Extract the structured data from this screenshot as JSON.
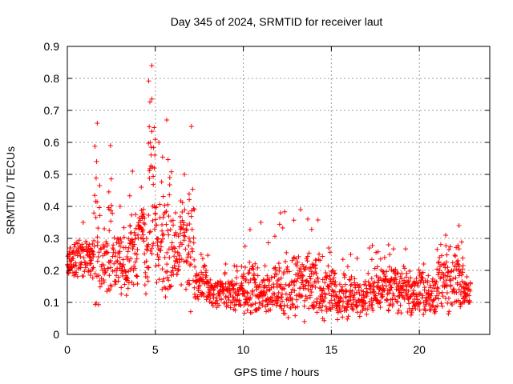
{
  "chart_data": {
    "type": "scatter",
    "title": "Day 345 of 2024, SRMTID for receiver laut",
    "xlabel": "GPS time / hours",
    "ylabel": "SRMTID / TECUs",
    "xlim": [
      0,
      24
    ],
    "ylim": [
      0,
      0.9
    ],
    "xticks": [
      0,
      5,
      10,
      15,
      20
    ],
    "yticks": [
      0,
      0.1,
      0.2,
      0.3,
      0.4,
      0.5,
      0.6,
      0.7,
      0.8,
      0.9
    ],
    "grid": true,
    "marker": "+",
    "color": "#ff0000",
    "segments": [
      {
        "t0": 0.0,
        "t1": 0.3,
        "base": 0.23,
        "amp": 0.05,
        "peak": 0.27
      },
      {
        "t0": 0.3,
        "t1": 1.5,
        "base": 0.24,
        "amp": 0.08,
        "peak": 0.35
      },
      {
        "t0": 1.5,
        "t1": 1.9,
        "base": 0.3,
        "amp": 0.25,
        "peak": 0.66
      },
      {
        "t0": 1.9,
        "t1": 2.3,
        "base": 0.22,
        "amp": 0.1,
        "peak": 0.33
      },
      {
        "t0": 2.3,
        "t1": 2.6,
        "base": 0.3,
        "amp": 0.2,
        "peak": 0.59
      },
      {
        "t0": 2.6,
        "t1": 3.4,
        "base": 0.22,
        "amp": 0.12,
        "peak": 0.4
      },
      {
        "t0": 3.4,
        "t1": 4.0,
        "base": 0.25,
        "amp": 0.15,
        "peak": 0.51
      },
      {
        "t0": 4.0,
        "t1": 4.4,
        "base": 0.33,
        "amp": 0.1,
        "peak": 0.46
      },
      {
        "t0": 4.4,
        "t1": 4.6,
        "base": 0.22,
        "amp": 0.1,
        "peak": 0.3
      },
      {
        "t0": 4.6,
        "t1": 5.0,
        "base": 0.45,
        "amp": 0.35,
        "peak": 0.84
      },
      {
        "t0": 5.0,
        "t1": 5.4,
        "base": 0.3,
        "amp": 0.2,
        "peak": 0.6
      },
      {
        "t0": 5.4,
        "t1": 5.9,
        "base": 0.3,
        "amp": 0.25,
        "peak": 0.67
      },
      {
        "t0": 5.9,
        "t1": 6.4,
        "base": 0.25,
        "amp": 0.12,
        "peak": 0.38
      },
      {
        "t0": 6.4,
        "t1": 6.9,
        "base": 0.28,
        "amp": 0.18,
        "peak": 0.5
      },
      {
        "t0": 6.9,
        "t1": 7.2,
        "base": 0.3,
        "amp": 0.25,
        "peak": 0.65
      },
      {
        "t0": 7.2,
        "t1": 8.0,
        "base": 0.16,
        "amp": 0.08,
        "peak": 0.25
      },
      {
        "t0": 8.0,
        "t1": 10.0,
        "base": 0.13,
        "amp": 0.06,
        "peak": 0.22
      },
      {
        "t0": 10.0,
        "t1": 12.0,
        "base": 0.14,
        "amp": 0.1,
        "peak": 0.35
      },
      {
        "t0": 12.0,
        "t1": 14.5,
        "base": 0.15,
        "amp": 0.12,
        "peak": 0.39
      },
      {
        "t0": 14.5,
        "t1": 15.2,
        "base": 0.14,
        "amp": 0.1,
        "peak": 0.27
      },
      {
        "t0": 15.2,
        "t1": 17.0,
        "base": 0.12,
        "amp": 0.08,
        "peak": 0.25
      },
      {
        "t0": 17.0,
        "t1": 19.5,
        "base": 0.14,
        "amp": 0.08,
        "peak": 0.28
      },
      {
        "t0": 19.5,
        "t1": 21.0,
        "base": 0.13,
        "amp": 0.08,
        "peak": 0.22
      },
      {
        "t0": 21.0,
        "t1": 22.0,
        "base": 0.17,
        "amp": 0.12,
        "peak": 0.31
      },
      {
        "t0": 22.0,
        "t1": 22.5,
        "base": 0.18,
        "amp": 0.12,
        "peak": 0.34
      },
      {
        "t0": 22.5,
        "t1": 22.9,
        "base": 0.13,
        "amp": 0.05,
        "peak": 0.18
      }
    ],
    "sample_step_hours": 0.02,
    "lower_clip": 0.04
  }
}
